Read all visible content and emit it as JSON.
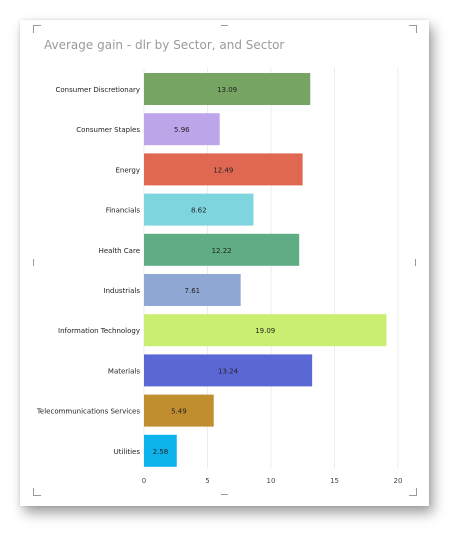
{
  "visual": {
    "title": "Average gain - dlr by Sector, and Sector"
  },
  "chart_data": {
    "type": "bar",
    "orientation": "horizontal",
    "title": "Average gain - dlr by Sector, and Sector",
    "xlabel": "",
    "ylabel": "",
    "xlim": [
      0,
      20
    ],
    "xticks": [
      0,
      5,
      10,
      15,
      20
    ],
    "grid": "vertical",
    "categories": [
      "Consumer Discretionary",
      "Consumer Staples",
      "Energy",
      "Financials",
      "Health Care",
      "Industrials",
      "Information Technology",
      "Materials",
      "Telecommunications Services",
      "Utilities"
    ],
    "values": [
      13.09,
      5.96,
      12.49,
      8.62,
      12.22,
      7.61,
      19.09,
      13.24,
      5.49,
      2.58
    ],
    "labels": [
      "13.09",
      "5.96",
      "12.49",
      "8.62",
      "12.22",
      "7.61",
      "19.09",
      "13.24",
      "5.49",
      "2.58"
    ],
    "colors": [
      "#76a462",
      "#bca6e9",
      "#e06853",
      "#7fd5de",
      "#60ad85",
      "#8ea8d3",
      "#c9ee70",
      "#5c67d6",
      "#c08d2f",
      "#0cb3ec"
    ]
  }
}
